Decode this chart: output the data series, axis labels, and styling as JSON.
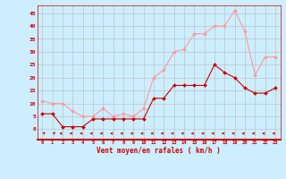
{
  "x": [
    0,
    1,
    2,
    3,
    4,
    5,
    6,
    7,
    8,
    9,
    10,
    11,
    12,
    13,
    14,
    15,
    16,
    17,
    18,
    19,
    20,
    21,
    22,
    23
  ],
  "wind_avg": [
    6,
    6,
    1,
    1,
    1,
    4,
    4,
    4,
    4,
    4,
    4,
    12,
    12,
    17,
    17,
    17,
    17,
    25,
    22,
    20,
    16,
    14,
    14,
    16
  ],
  "wind_gust": [
    11,
    10,
    10,
    7,
    5,
    5,
    8,
    5,
    6,
    5,
    8,
    20,
    23,
    30,
    31,
    37,
    37,
    40,
    40,
    46,
    38,
    21,
    28,
    28
  ],
  "bg_color": "#cceeff",
  "grid_color": "#bbbbbb",
  "line_avg_color": "#cc0000",
  "line_gust_color": "#ff9999",
  "xlabel": "Vent moyen/en rafales ( km/h )",
  "xlabel_color": "#cc0000",
  "ylabel_ticks": [
    0,
    5,
    10,
    15,
    20,
    25,
    30,
    35,
    40,
    45
  ],
  "xlim": [
    -0.5,
    23.5
  ],
  "ylim": [
    -4,
    48
  ],
  "tick_color": "#cc0000",
  "spine_color": "#cc0000"
}
